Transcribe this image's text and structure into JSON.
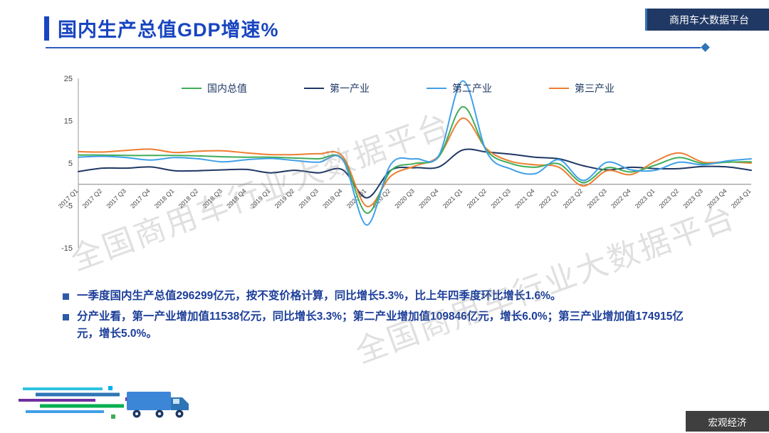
{
  "slide": {
    "title": "国内生产总值GDP增速%",
    "top_badge": "商用车大数据平台",
    "bottom_badge": "宏观经济",
    "watermark": "全国商用车行业大数据平台"
  },
  "bullets": [
    "一季度国内生产总值296299亿元，按不变价格计算，同比增长5.3%，比上年四季度环比增长1.6%。",
    "分产业看，第一产业增加值11538亿元，同比增长3.3%；第二产业增加值109846亿元，增长6.0%；第三产业增加值174915亿元，增长5.0%。"
  ],
  "colors": {
    "title_blue": "#1845C0",
    "badge_navy": "#203864",
    "badge_gray": "#3f3f3f",
    "axis_gray": "#999999",
    "bullet_text": "#1C3E99"
  },
  "chart_data": {
    "type": "line",
    "title": "",
    "xlabel": "",
    "ylabel": "",
    "ylim": [
      -15,
      25
    ],
    "yticks": [
      25,
      15,
      5,
      -5,
      -15
    ],
    "grid": false,
    "legend_position": "top",
    "categories": [
      "2017 Q1",
      "2017 Q2",
      "2017 Q3",
      "2017 Q4",
      "2018 Q1",
      "2018 Q2",
      "2018 Q3",
      "2018 Q4",
      "2019 Q1",
      "2019 Q2",
      "2019 Q3",
      "2019 Q4",
      "2020 Q1",
      "2020 Q2",
      "2020 Q3",
      "2020 Q4",
      "2021 Q1",
      "2021 Q2",
      "2021 Q3",
      "2021 Q4",
      "2022 Q1",
      "2022 Q2",
      "2022 Q3",
      "2022 Q4",
      "2023 Q1",
      "2023 Q2",
      "2023 Q3",
      "2023 Q4",
      "2024 Q1"
    ],
    "series": [
      {
        "name": "国内总值",
        "color": "#3fad58",
        "values": [
          6.9,
          6.9,
          6.8,
          6.8,
          6.8,
          6.7,
          6.5,
          6.4,
          6.4,
          6.2,
          6.0,
          6.0,
          -6.8,
          3.2,
          4.9,
          6.5,
          18.3,
          7.9,
          4.9,
          4.0,
          4.8,
          0.4,
          3.9,
          2.9,
          4.5,
          6.3,
          4.9,
          5.2,
          5.3
        ]
      },
      {
        "name": "第一产业",
        "color": "#1F3864",
        "values": [
          3.0,
          3.8,
          3.8,
          4.1,
          3.2,
          3.2,
          3.4,
          3.5,
          2.7,
          3.3,
          2.7,
          3.4,
          -3.2,
          3.3,
          3.9,
          4.1,
          8.1,
          7.6,
          7.1,
          6.4,
          6.0,
          4.4,
          3.4,
          4.0,
          3.7,
          3.7,
          4.2,
          4.1,
          3.3
        ]
      },
      {
        "name": "第二产业",
        "color": "#41A0E8",
        "values": [
          6.4,
          6.6,
          6.3,
          5.7,
          6.3,
          6.0,
          5.3,
          5.8,
          6.1,
          5.6,
          5.2,
          5.8,
          -9.6,
          4.7,
          6.0,
          6.8,
          24.4,
          7.5,
          3.6,
          2.5,
          5.8,
          0.9,
          5.2,
          3.4,
          3.3,
          5.2,
          4.6,
          5.5,
          6.0
        ]
      },
      {
        "name": "第三产业",
        "color": "#ED7D31",
        "values": [
          7.7,
          7.6,
          8.0,
          8.3,
          7.5,
          7.8,
          7.9,
          7.4,
          7.0,
          7.0,
          7.2,
          6.6,
          -5.2,
          1.9,
          4.3,
          6.7,
          15.6,
          8.3,
          5.4,
          4.6,
          4.0,
          -0.4,
          3.2,
          2.3,
          5.4,
          7.4,
          5.2,
          5.3,
          5.0
        ]
      }
    ]
  }
}
